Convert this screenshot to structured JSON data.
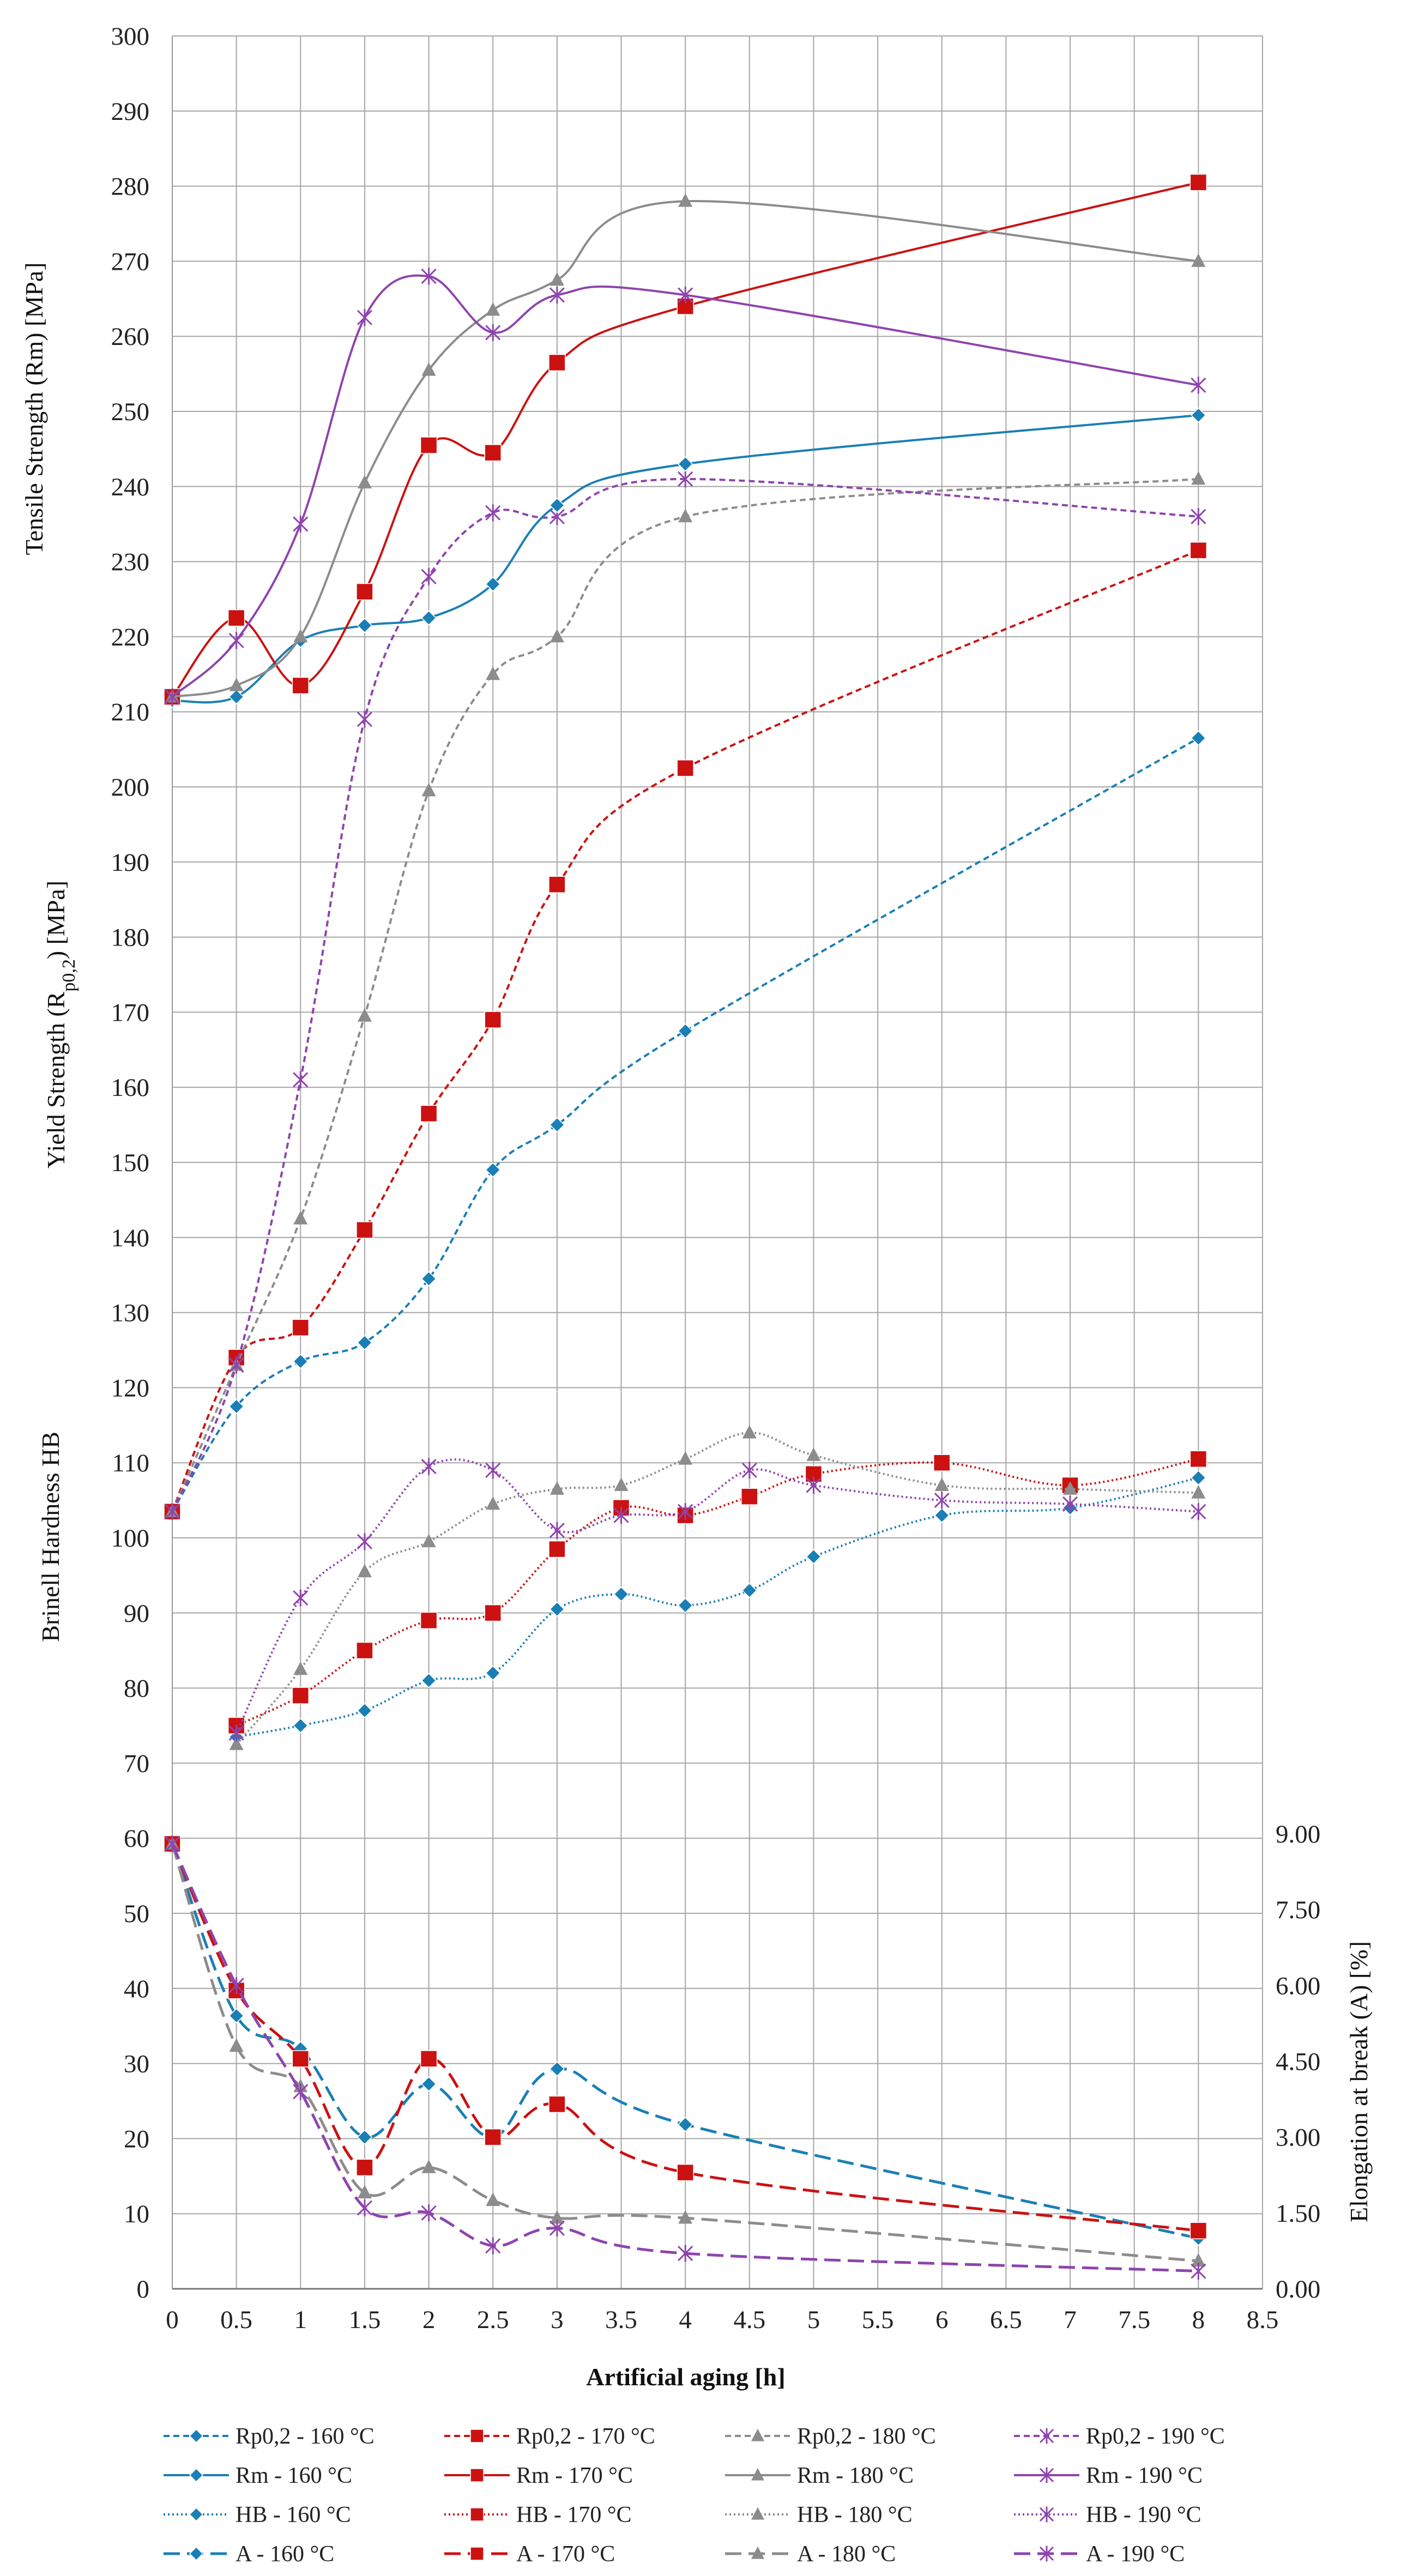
{
  "chart_data": {
    "type": "line",
    "xlabel": "Artificial aging [h]",
    "x_ticks": [
      "0",
      "0.5",
      "1",
      "1.5",
      "2",
      "2.5",
      "3",
      "3.5",
      "4",
      "4.5",
      "5",
      "5.5",
      "6",
      "6.5",
      "7",
      "7.5",
      "8",
      "8.5"
    ],
    "xlim": [
      0,
      8.5
    ],
    "left_y_ticks": [
      "0",
      "10",
      "20",
      "30",
      "40",
      "50",
      "60",
      "70",
      "80",
      "90",
      "100",
      "110",
      "120",
      "130",
      "140",
      "150",
      "160",
      "170",
      "180",
      "190",
      "200",
      "210",
      "220",
      "230",
      "240",
      "250",
      "260",
      "270",
      "280",
      "290",
      "300"
    ],
    "ylim": [
      0,
      300
    ],
    "right_y_ticks": [
      "0.00",
      "1.50",
      "3.00",
      "4.50",
      "6.00",
      "7.50",
      "9.00"
    ],
    "right_ylim": [
      0,
      9
    ],
    "ylabels": {
      "tensile": "Tensile Strength (Rm) [MPa]",
      "yield_main": "Yield Strength (R",
      "yield_sub": "p0,2",
      "yield_end": ") [MPa]",
      "hardness": "Brinell Hardness HB",
      "elongation": "Elongation at break (A) [%]"
    },
    "colors": {
      "160": "#1a7fb5",
      "170": "#cc1111",
      "180": "#8c8c8c",
      "190": "#8e44ad"
    },
    "grid": true,
    "legend_position": "bottom",
    "series": [
      {
        "name": "Rp0,2 - 160 °C",
        "temp": "160",
        "group": "rp",
        "x": [
          0,
          0.5,
          1,
          1.5,
          2,
          2.5,
          3,
          4,
          8
        ],
        "values": [
          103.5,
          117.5,
          123.5,
          126,
          134.5,
          149,
          155,
          167.5,
          206.5
        ]
      },
      {
        "name": "Rp0,2 - 170 °C",
        "temp": "170",
        "group": "rp",
        "x": [
          0,
          0.5,
          1,
          1.5,
          2,
          2.5,
          3,
          4,
          8
        ],
        "values": [
          103.5,
          124,
          128,
          141,
          156.5,
          169,
          187,
          202.5,
          231.5
        ]
      },
      {
        "name": "Rp0,2 - 180 °C",
        "temp": "180",
        "group": "rp",
        "x": [
          0,
          0.5,
          1,
          1.5,
          2,
          2.5,
          3,
          4,
          8
        ],
        "values": [
          103.5,
          123,
          142.5,
          169.5,
          199.5,
          215,
          220,
          236,
          241
        ]
      },
      {
        "name": "Rp0,2 - 190 °C",
        "temp": "190",
        "group": "rp",
        "x": [
          0,
          0.5,
          1,
          1.5,
          2,
          2.5,
          3,
          4,
          8
        ],
        "values": [
          103.5,
          123,
          161,
          209,
          228,
          236.5,
          236,
          241,
          236
        ]
      },
      {
        "name": "Rm - 160 °C",
        "temp": "160",
        "group": "rm",
        "x": [
          0,
          0.5,
          1,
          1.5,
          2,
          2.5,
          3,
          4,
          8
        ],
        "values": [
          211.5,
          212,
          219.5,
          221.5,
          222.5,
          227,
          237.5,
          243,
          249.5
        ]
      },
      {
        "name": "Rm - 170 °C",
        "temp": "170",
        "group": "rm",
        "x": [
          0,
          0.5,
          1,
          1.5,
          2,
          2.5,
          3,
          4,
          8
        ],
        "values": [
          212,
          222.5,
          213.5,
          226,
          245.5,
          244.5,
          256.5,
          264,
          280.5
        ]
      },
      {
        "name": "Rm - 180 °C",
        "temp": "180",
        "group": "rm",
        "x": [
          0,
          0.5,
          1,
          1.5,
          2,
          2.5,
          3,
          4,
          8
        ],
        "values": [
          212,
          213.5,
          220,
          240.5,
          255.5,
          263.5,
          267.5,
          278,
          270
        ]
      },
      {
        "name": "Rm - 190 °C",
        "temp": "190",
        "group": "rm",
        "x": [
          0,
          0.5,
          1,
          1.5,
          2,
          2.5,
          3,
          4,
          8
        ],
        "values": [
          212,
          219.5,
          235,
          262.5,
          268,
          260.5,
          265.5,
          265.5,
          253.5
        ]
      },
      {
        "name": "HB - 160 °C",
        "temp": "160",
        "group": "hb",
        "x": [
          0.5,
          1,
          1.5,
          2,
          2.5,
          3,
          3.5,
          4,
          4.5,
          5,
          6,
          7,
          8
        ],
        "values": [
          73.5,
          75,
          77,
          81,
          82,
          90.5,
          92.5,
          91,
          93,
          97.5,
          103,
          104,
          108
        ]
      },
      {
        "name": "HB - 170 °C",
        "temp": "170",
        "group": "hb",
        "x": [
          0.5,
          1,
          1.5,
          2,
          2.5,
          3,
          3.5,
          4,
          4.5,
          5,
          6,
          7,
          8
        ],
        "values": [
          75,
          79,
          85,
          89,
          90,
          98.5,
          104,
          103,
          105.5,
          108.5,
          110,
          107,
          110.5
        ]
      },
      {
        "name": "HB - 180 °C",
        "temp": "180",
        "group": "hb",
        "x": [
          0.5,
          1,
          1.5,
          2,
          2.5,
          3,
          3.5,
          4,
          4.5,
          5,
          6,
          7,
          8
        ],
        "values": [
          72.5,
          82.5,
          95.5,
          99.5,
          104.5,
          106.5,
          107,
          110.5,
          114,
          111,
          107,
          106.5,
          106
        ]
      },
      {
        "name": "HB - 190 °C",
        "temp": "190",
        "group": "hb",
        "x": [
          0.5,
          1,
          1.5,
          2,
          2.5,
          3,
          3.5,
          4,
          4.5,
          5,
          6,
          7,
          8
        ],
        "values": [
          74,
          92,
          99.5,
          109.5,
          109,
          101,
          103,
          103.5,
          109,
          107,
          105,
          104.5,
          103.5
        ]
      },
      {
        "name": "A - 160 °C",
        "temp": "160",
        "group": "a",
        "x": [
          0,
          0.5,
          1,
          1.5,
          2,
          2.5,
          3,
          4,
          8
        ],
        "values": [
          8.8,
          5.4,
          4.75,
          3.0,
          4.05,
          3.0,
          4.35,
          3.25,
          1.0
        ]
      },
      {
        "name": "A - 170 °C",
        "temp": "170",
        "group": "a",
        "x": [
          0,
          0.5,
          1,
          1.5,
          2,
          2.5,
          3,
          4,
          8
        ],
        "values": [
          8.8,
          5.9,
          4.55,
          2.4,
          4.55,
          3.0,
          3.65,
          2.3,
          1.15
        ]
      },
      {
        "name": "A - 180 °C",
        "temp": "180",
        "group": "a",
        "x": [
          0,
          0.5,
          1,
          1.5,
          2,
          2.5,
          3,
          4,
          8
        ],
        "values": [
          8.8,
          4.8,
          4.0,
          1.9,
          2.4,
          1.75,
          1.4,
          1.4,
          0.55
        ]
      },
      {
        "name": "A - 190 °C",
        "temp": "190",
        "group": "a",
        "x": [
          0,
          0.5,
          1,
          1.5,
          2,
          2.5,
          3,
          4,
          8
        ],
        "values": [
          8.8,
          6.0,
          3.9,
          1.6,
          1.5,
          0.85,
          1.2,
          0.7,
          0.35
        ]
      }
    ]
  }
}
